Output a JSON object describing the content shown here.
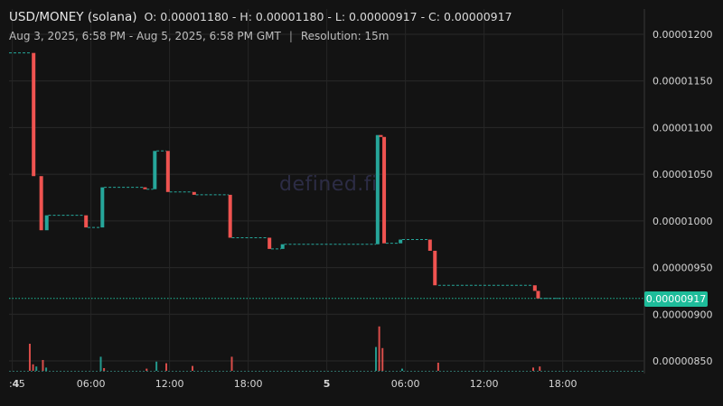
{
  "header": {
    "pair": "USD/MONEY (solana)",
    "ohlc": "O: 0.00001180 - H: 0.00001180 - L: 0.00000917 - C: 0.00000917",
    "range": "Aug 3, 2025, 6:58 PM - Aug 5, 2025, 6:58 PM GMT",
    "separator": "|",
    "resolution": "Resolution: 15m"
  },
  "watermark": "defined.fi",
  "last_price_label": "0.00000917",
  "colors": {
    "up": "#26a69a",
    "down": "#ef5350",
    "last_price_tag": "#1ebc9a",
    "background": "#131313"
  },
  "chart_data": {
    "type": "candlestick",
    "title": "USD/MONEY (solana)",
    "ylim": [
      8.37e-06,
      1.22e-05
    ],
    "y_ticks": [
      {
        "value": 8.5e-06,
        "label": "0.00000850"
      },
      {
        "value": 9e-06,
        "label": "0.00000900"
      },
      {
        "value": 9.5e-06,
        "label": "0.00000950"
      },
      {
        "value": 1e-05,
        "label": "0.00001000"
      },
      {
        "value": 1.05e-05,
        "label": "0.00001050"
      },
      {
        "value": 1.1e-05,
        "label": "0.00001100"
      },
      {
        "value": 1.15e-05,
        "label": "0.00001150"
      },
      {
        "value": 1.2e-05,
        "label": "0.00001200"
      }
    ],
    "x_ticks": [
      {
        "time": "Aug 3 23:45",
        "label": ":45",
        "bold": false
      },
      {
        "time": "Aug 4 00:00",
        "label": "4",
        "bold": true
      },
      {
        "time": "Aug 4 06:00",
        "label": "06:00",
        "bold": false
      },
      {
        "time": "Aug 4 12:00",
        "label": "12:00",
        "bold": false
      },
      {
        "time": "Aug 4 18:00",
        "label": "18:00",
        "bold": false
      },
      {
        "time": "Aug 5 00:00",
        "label": "5",
        "bold": true
      },
      {
        "time": "Aug 5 06:00",
        "label": "06:00",
        "bold": false
      },
      {
        "time": "Aug 5 12:00",
        "label": "12:00",
        "bold": false
      },
      {
        "time": "Aug 5 18:00",
        "label": "18:00",
        "bold": false
      }
    ],
    "last_price": 9.17e-06,
    "last_price_label": "0.00000917",
    "price_line": [
      {
        "time": "Aug 3 23:45",
        "value": 1.18e-05
      },
      {
        "time": "Aug 4 01:20",
        "value": 1.18e-05
      },
      {
        "time": "Aug 4 01:55",
        "value": 1.048e-05
      },
      {
        "time": "Aug 4 02:30",
        "value": 9.9e-06
      },
      {
        "time": "Aug 4 02:45",
        "value": 1.006e-05
      },
      {
        "time": "Aug 4 05:30",
        "value": 1.006e-05
      },
      {
        "time": "Aug 4 05:45",
        "value": 9.93e-06
      },
      {
        "time": "Aug 4 06:45",
        "value": 9.93e-06
      },
      {
        "time": "Aug 4 07:00",
        "value": 1.036e-05
      },
      {
        "time": "Aug 4 10:00",
        "value": 1.036e-05
      },
      {
        "time": "Aug 4 10:15",
        "value": 1.034e-05
      },
      {
        "time": "Aug 4 10:45",
        "value": 1.034e-05
      },
      {
        "time": "Aug 4 11:00",
        "value": 1.075e-05
      },
      {
        "time": "Aug 4 11:45",
        "value": 1.075e-05
      },
      {
        "time": "Aug 4 12:00",
        "value": 1.031e-05
      },
      {
        "time": "Aug 4 13:45",
        "value": 1.031e-05
      },
      {
        "time": "Aug 4 14:00",
        "value": 1.028e-05
      },
      {
        "time": "Aug 4 16:30",
        "value": 1.028e-05
      },
      {
        "time": "Aug 4 16:45",
        "value": 9.82e-06
      },
      {
        "time": "Aug 4 19:30",
        "value": 9.82e-06
      },
      {
        "time": "Aug 4 19:45",
        "value": 9.7e-06
      },
      {
        "time": "Aug 4 20:30",
        "value": 9.7e-06
      },
      {
        "time": "Aug 4 20:45",
        "value": 9.75e-06
      },
      {
        "time": "Aug 5 03:45",
        "value": 9.75e-06
      },
      {
        "time": "Aug 5 04:00",
        "value": 1.092e-05
      },
      {
        "time": "Aug 5 04:15",
        "value": 1.09e-05
      },
      {
        "time": "Aug 5 04:30",
        "value": 9.76e-06
      },
      {
        "time": "Aug 5 05:30",
        "value": 9.76e-06
      },
      {
        "time": "Aug 5 05:45",
        "value": 9.8e-06
      },
      {
        "time": "Aug 5 07:45",
        "value": 9.8e-06
      },
      {
        "time": "Aug 5 08:00",
        "value": 9.68e-06
      },
      {
        "time": "Aug 5 08:30",
        "value": 9.31e-06
      },
      {
        "time": "Aug 5 15:45",
        "value": 9.31e-06
      },
      {
        "time": "Aug 5 16:00",
        "value": 9.25e-06
      },
      {
        "time": "Aug 5 16:15",
        "value": 9.17e-06
      },
      {
        "time": "Aug 5 18:00",
        "value": 9.17e-06
      }
    ],
    "volume_bars": [
      {
        "time": "Aug 4 01:20",
        "dir": "down",
        "rel": 0.5
      },
      {
        "time": "Aug 4 01:35",
        "dir": "down",
        "rel": 0.12
      },
      {
        "time": "Aug 4 01:50",
        "dir": "up",
        "rel": 0.08
      },
      {
        "time": "Aug 4 02:20",
        "dir": "down",
        "rel": 0.2
      },
      {
        "time": "Aug 4 02:35",
        "dir": "up",
        "rel": 0.06
      },
      {
        "time": "Aug 4 06:45",
        "dir": "up",
        "rel": 0.26
      },
      {
        "time": "Aug 4 07:00",
        "dir": "down",
        "rel": 0.05
      },
      {
        "time": "Aug 4 10:15",
        "dir": "down",
        "rel": 0.04
      },
      {
        "time": "Aug 4 11:00",
        "dir": "up",
        "rel": 0.17
      },
      {
        "time": "Aug 4 11:45",
        "dir": "down",
        "rel": 0.14
      },
      {
        "time": "Aug 4 13:45",
        "dir": "down",
        "rel": 0.09
      },
      {
        "time": "Aug 4 16:45",
        "dir": "down",
        "rel": 0.26
      },
      {
        "time": "Aug 5 03:45",
        "dir": "up",
        "rel": 0.44
      },
      {
        "time": "Aug 5 04:00",
        "dir": "down",
        "rel": 0.82
      },
      {
        "time": "Aug 5 04:15",
        "dir": "down",
        "rel": 0.42
      },
      {
        "time": "Aug 5 05:45",
        "dir": "up",
        "rel": 0.04
      },
      {
        "time": "Aug 5 08:30",
        "dir": "down",
        "rel": 0.15
      },
      {
        "time": "Aug 5 15:45",
        "dir": "down",
        "rel": 0.06
      },
      {
        "time": "Aug 5 16:15",
        "dir": "down",
        "rel": 0.08
      }
    ]
  }
}
